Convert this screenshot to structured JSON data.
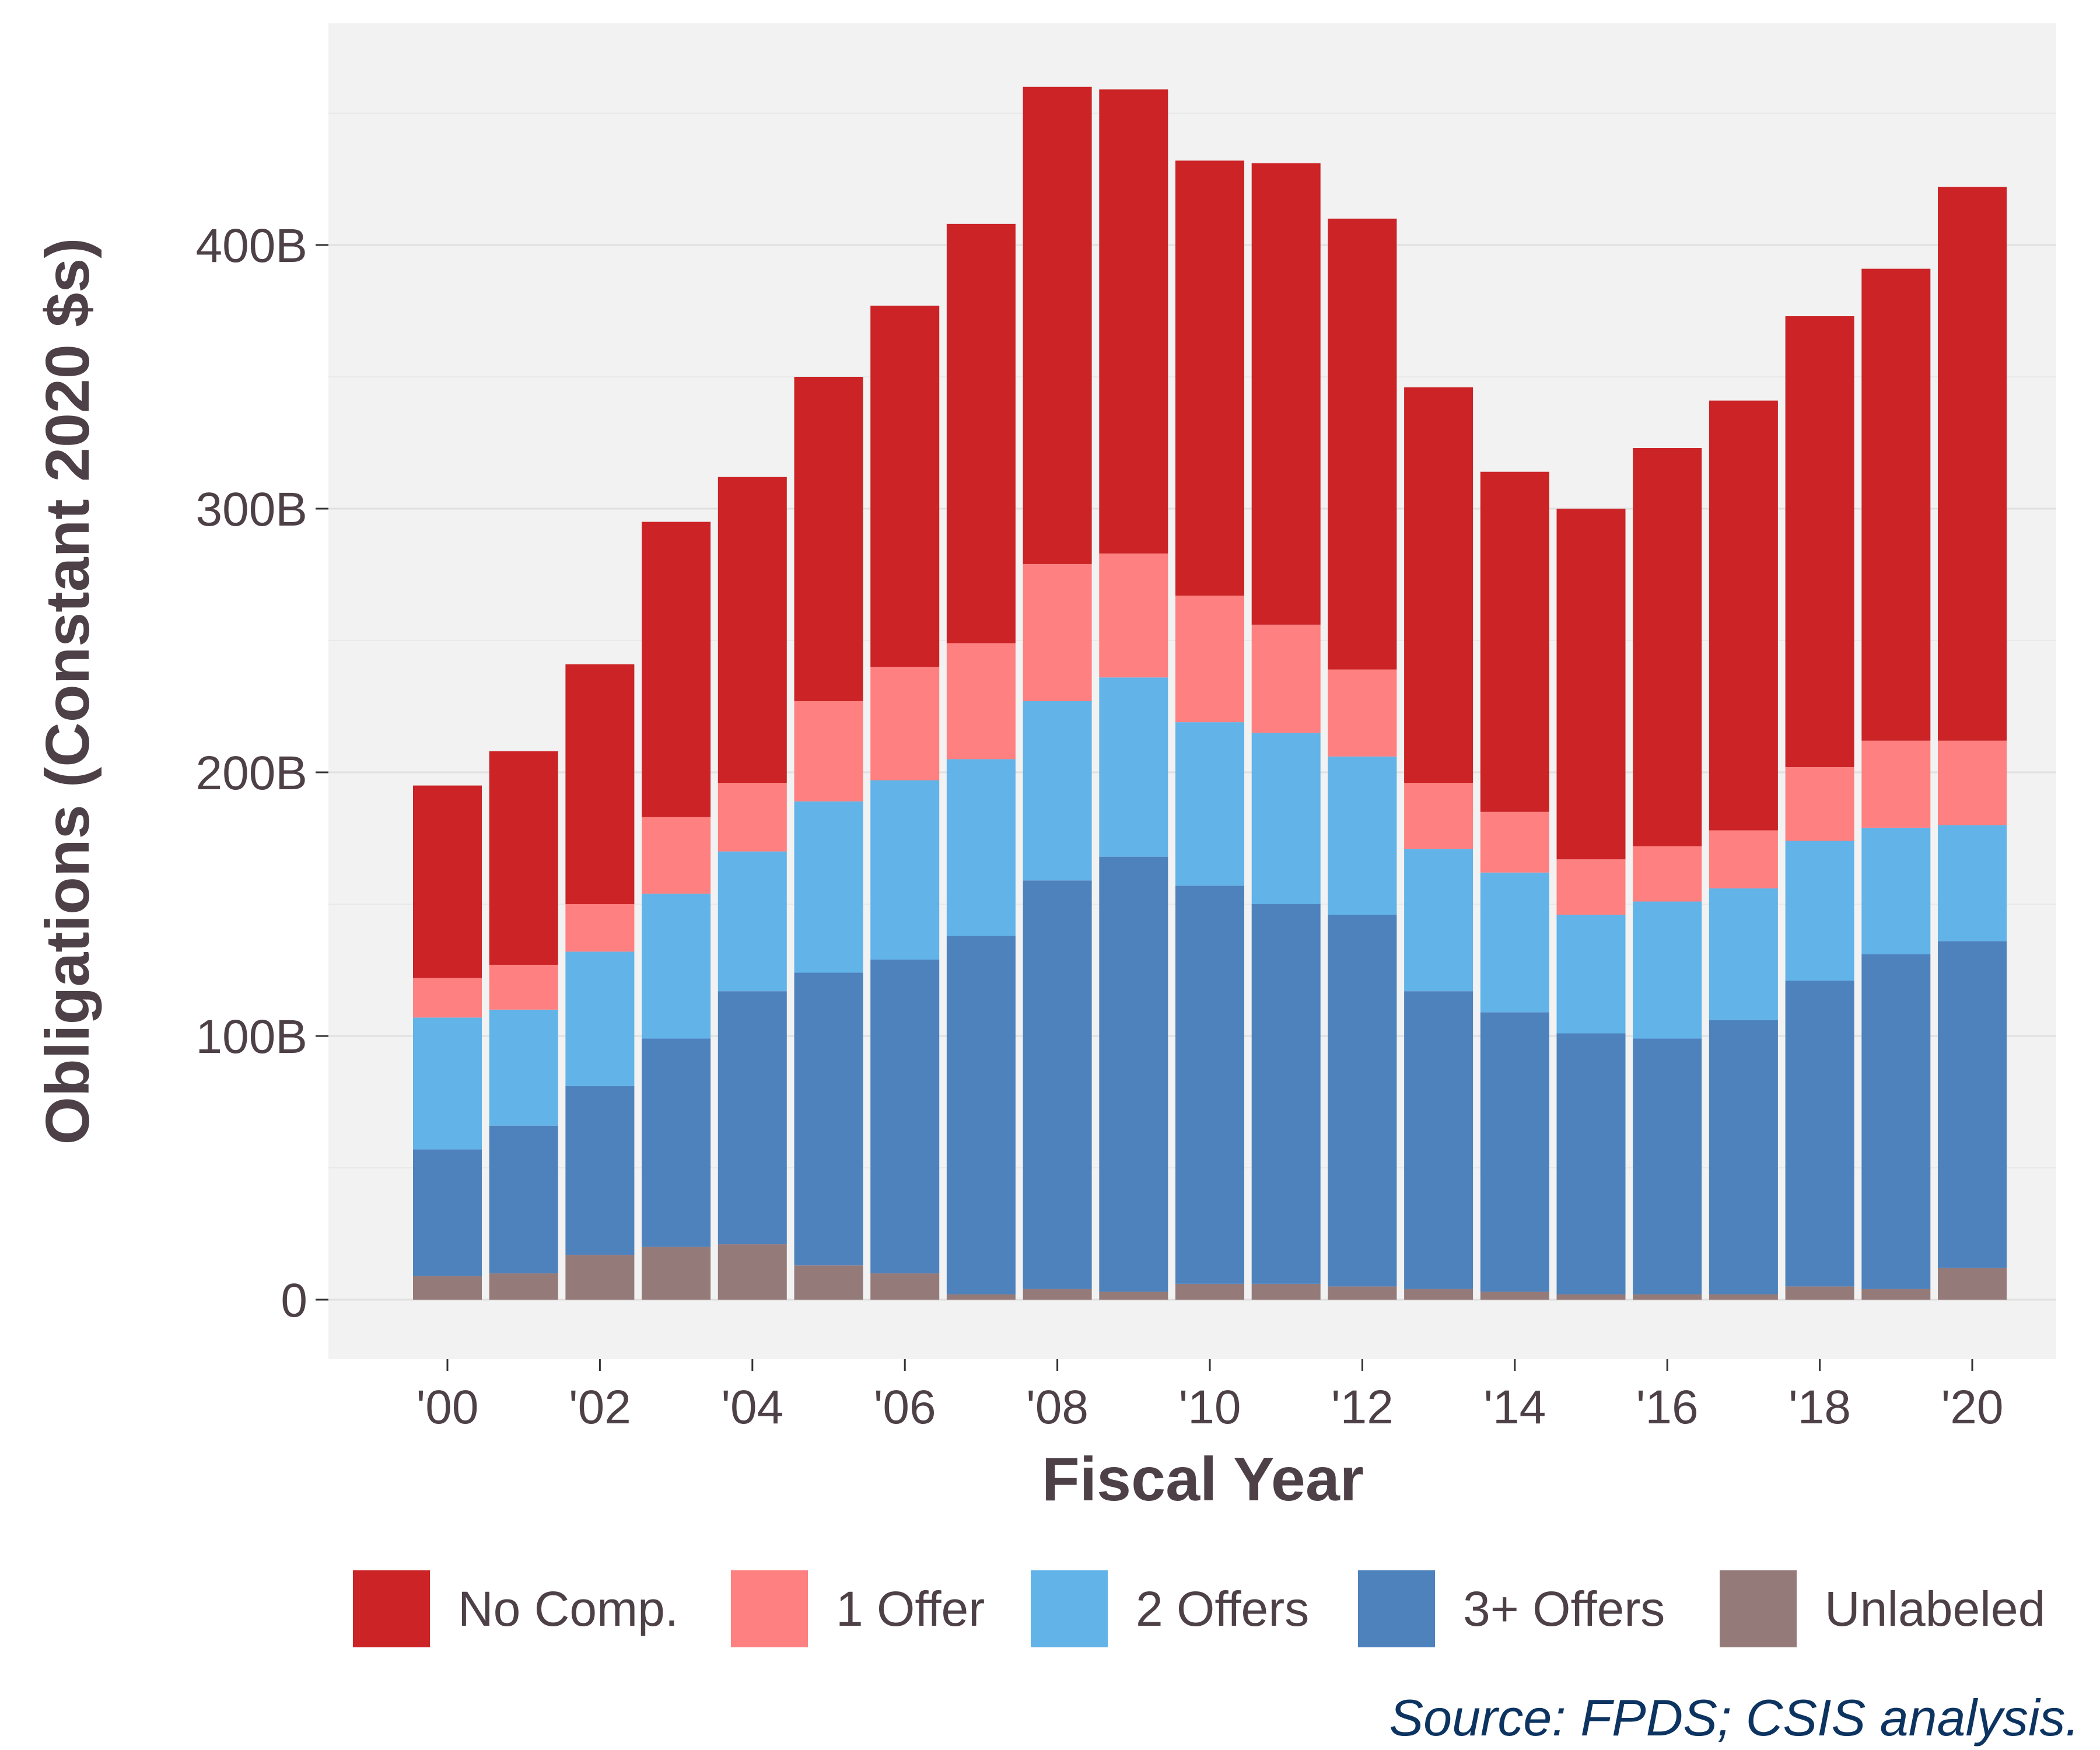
{
  "chart_data": {
    "type": "bar",
    "stacked": true,
    "xlabel": "Fiscal Year",
    "ylabel": "Obligations (Constant 2020 $s)",
    "ylim": [
      0,
      480
    ],
    "y_unit": "billions of dollars",
    "y_ticks": [
      {
        "value": 0,
        "label": "0"
      },
      {
        "value": 100,
        "label": "100B"
      },
      {
        "value": 200,
        "label": "200B"
      },
      {
        "value": 300,
        "label": "300B"
      },
      {
        "value": 400,
        "label": "400B"
      }
    ],
    "x_tick_labels": [
      "'00",
      "'02",
      "'04",
      "'06",
      "'08",
      "'10",
      "'12",
      "'14",
      "'16",
      "'18",
      "'20"
    ],
    "categories": [
      "2000",
      "2001",
      "2002",
      "2003",
      "2004",
      "2005",
      "2006",
      "2007",
      "2008",
      "2009",
      "2010",
      "2011",
      "2012",
      "2013",
      "2014",
      "2015",
      "2016",
      "2017",
      "2018",
      "2019",
      "2020"
    ],
    "series": [
      {
        "name": "Unlabeled",
        "color": "#957a7a",
        "values": [
          9,
          10,
          17,
          20,
          21,
          13,
          10,
          2,
          4,
          3,
          6,
          6,
          5,
          4,
          3,
          2,
          2,
          2,
          5,
          4,
          12
        ]
      },
      {
        "name": "3+ Offers",
        "color": "#4e82bd",
        "values": [
          48,
          56,
          64,
          79,
          96,
          111,
          119,
          136,
          155,
          165,
          151,
          144,
          141,
          113,
          106,
          99,
          97,
          104,
          116,
          127,
          124
        ]
      },
      {
        "name": "2 Offers",
        "color": "#61b3e8",
        "values": [
          50,
          44,
          51,
          55,
          53,
          65,
          68,
          67,
          68,
          68,
          62,
          65,
          60,
          54,
          53,
          45,
          52,
          50,
          53,
          48,
          44
        ]
      },
      {
        "name": "1 Offer",
        "color": "#fe8080",
        "values": [
          15,
          17,
          18,
          29,
          26,
          38,
          43,
          44,
          52,
          47,
          48,
          41,
          33,
          25,
          23,
          21,
          21,
          22,
          28,
          33,
          32
        ]
      },
      {
        "name": "No Comp.",
        "color": "#cb2326",
        "values": [
          73,
          81,
          91,
          112,
          116,
          123,
          137,
          159,
          181,
          176,
          165,
          175,
          171,
          150,
          129,
          133,
          151,
          163,
          171,
          179,
          210
        ]
      }
    ],
    "legend_order": [
      "No Comp.",
      "1 Offer",
      "2 Offers",
      "3+ Offers",
      "Unlabeled"
    ],
    "legend_position": "bottom",
    "grid": true,
    "panel_background": "#f2f2f2",
    "source_note": "Source: FPDS; CSIS analysis."
  }
}
